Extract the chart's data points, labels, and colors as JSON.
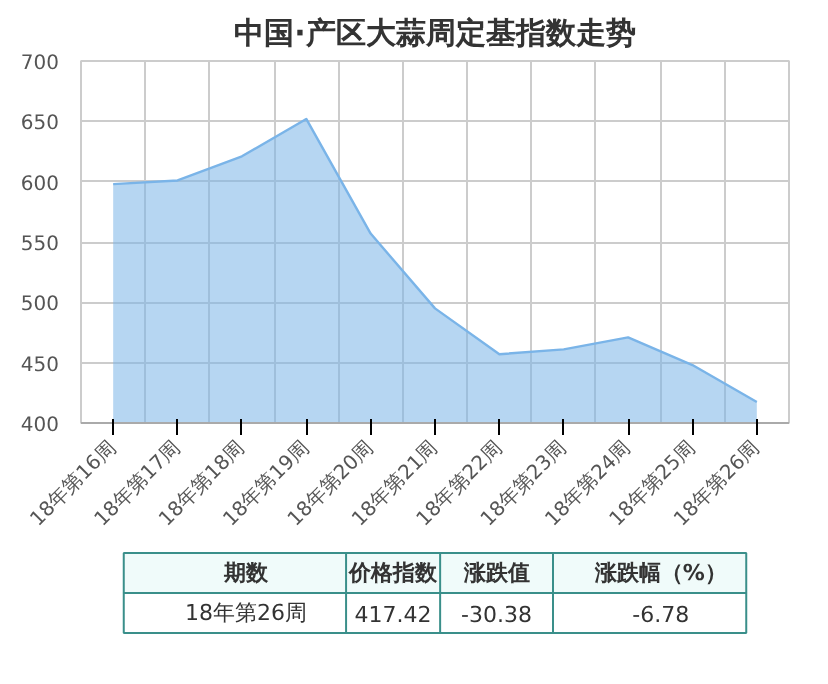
{
  "chart_data": {
    "type": "area",
    "title": "中国·产区大蒜周定基指数走势",
    "categories": [
      "18年第16周",
      "18年第17周",
      "18年第18周",
      "18年第19周",
      "18年第20周",
      "18年第21周",
      "18年第22周",
      "18年第23周",
      "18年第24周",
      "18年第25周",
      "18年第26周"
    ],
    "series": [
      {
        "color": "#7ab4e8",
        "values": [
          598,
          601,
          621,
          652,
          557,
          495,
          457,
          461,
          471,
          448,
          417.42
        ]
      }
    ],
    "ylim": [
      400,
      700
    ],
    "yticks": [
      400,
      450,
      500,
      550,
      600,
      650,
      700
    ],
    "grid": true,
    "annotations": [
      "期数",
      "价格指数",
      "涨跌值",
      "涨跌幅（%）",
      "18年第26周",
      "417.42",
      "-30.38",
      "-6.78"
    ]
  }
}
